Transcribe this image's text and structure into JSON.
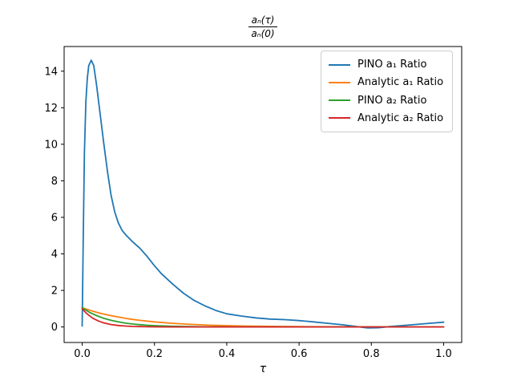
{
  "figure": {
    "background": "#ffffff"
  },
  "chart_data": {
    "type": "line",
    "title": "aₙ(τ) / aₙ(0)",
    "title_numerator": "aₙ(τ)",
    "title_denominator": "aₙ(0)",
    "xlabel": "τ",
    "ylabel": "",
    "grid": false,
    "xlim": [
      -0.05,
      1.05
    ],
    "ylim": [
      -0.85,
      15.35
    ],
    "xticks": {
      "values": [
        0.0,
        0.2,
        0.4,
        0.6,
        0.8,
        1.0
      ],
      "labels": [
        "0.0",
        "0.2",
        "0.4",
        "0.6",
        "0.8",
        "1.0"
      ]
    },
    "yticks": {
      "values": [
        0,
        2,
        4,
        6,
        8,
        10,
        12,
        14
      ],
      "labels": [
        "0",
        "2",
        "4",
        "6",
        "8",
        "10",
        "12",
        "14"
      ]
    },
    "legend_position": "upper right",
    "legend_border_color": "#cccccc",
    "series": [
      {
        "name": "PINO a₁ Ratio",
        "color": "#1f77b4",
        "points": [
          [
            0,
            0.05
          ],
          [
            0.003,
            5
          ],
          [
            0.006,
            9.5
          ],
          [
            0.01,
            12.3
          ],
          [
            0.014,
            13.6
          ],
          [
            0.018,
            14.3
          ],
          [
            0.025,
            14.6
          ],
          [
            0.032,
            14.3
          ],
          [
            0.04,
            13.2
          ],
          [
            0.05,
            11.6
          ],
          [
            0.06,
            10.0
          ],
          [
            0.07,
            8.5
          ],
          [
            0.08,
            7.2
          ],
          [
            0.09,
            6.3
          ],
          [
            0.1,
            5.7
          ],
          [
            0.11,
            5.3
          ],
          [
            0.12,
            5.05
          ],
          [
            0.14,
            4.65
          ],
          [
            0.16,
            4.3
          ],
          [
            0.18,
            3.85
          ],
          [
            0.2,
            3.35
          ],
          [
            0.22,
            2.9
          ],
          [
            0.25,
            2.35
          ],
          [
            0.28,
            1.85
          ],
          [
            0.31,
            1.45
          ],
          [
            0.34,
            1.15
          ],
          [
            0.37,
            0.9
          ],
          [
            0.4,
            0.72
          ],
          [
            0.44,
            0.6
          ],
          [
            0.48,
            0.5
          ],
          [
            0.52,
            0.43
          ],
          [
            0.56,
            0.4
          ],
          [
            0.6,
            0.35
          ],
          [
            0.64,
            0.28
          ],
          [
            0.68,
            0.2
          ],
          [
            0.72,
            0.12
          ],
          [
            0.76,
            0.02
          ],
          [
            0.79,
            -0.05
          ],
          [
            0.82,
            -0.04
          ],
          [
            0.85,
            0.02
          ],
          [
            0.9,
            0.1
          ],
          [
            0.95,
            0.18
          ],
          [
            1.0,
            0.26
          ]
        ]
      },
      {
        "name": "Analytic a₁ Ratio",
        "color": "#ff7f0e",
        "points": [
          [
            0,
            1.05
          ],
          [
            0.025,
            0.89
          ],
          [
            0.05,
            0.75
          ],
          [
            0.075,
            0.64
          ],
          [
            0.1,
            0.54
          ],
          [
            0.125,
            0.455
          ],
          [
            0.15,
            0.385
          ],
          [
            0.175,
            0.33
          ],
          [
            0.2,
            0.28
          ],
          [
            0.25,
            0.2
          ],
          [
            0.3,
            0.14
          ],
          [
            0.35,
            0.1
          ],
          [
            0.4,
            0.073
          ],
          [
            0.45,
            0.052
          ],
          [
            0.5,
            0.037
          ],
          [
            0.55,
            0.027
          ],
          [
            0.6,
            0.019
          ],
          [
            0.7,
            0.01
          ],
          [
            0.8,
            0.005
          ],
          [
            0.9,
            0.003
          ],
          [
            1.0,
            0.002
          ]
        ]
      },
      {
        "name": "PINO a₂ Ratio",
        "color": "#2ca02c",
        "points": [
          [
            0,
            1.05
          ],
          [
            0.02,
            0.8
          ],
          [
            0.04,
            0.62
          ],
          [
            0.06,
            0.47
          ],
          [
            0.08,
            0.36
          ],
          [
            0.1,
            0.28
          ],
          [
            0.12,
            0.21
          ],
          [
            0.14,
            0.16
          ],
          [
            0.16,
            0.125
          ],
          [
            0.18,
            0.095
          ],
          [
            0.2,
            0.073
          ],
          [
            0.25,
            0.037
          ],
          [
            0.3,
            0.019
          ],
          [
            0.35,
            0.01
          ],
          [
            0.4,
            0.005
          ],
          [
            0.5,
            0.001
          ],
          [
            0.6,
            0
          ],
          [
            0.7,
            0
          ],
          [
            0.8,
            0
          ],
          [
            0.9,
            0
          ],
          [
            1.0,
            0
          ]
        ]
      },
      {
        "name": "Analytic a₂ Ratio",
        "color": "#d62728",
        "points": [
          [
            0,
            1.0
          ],
          [
            0.01,
            0.78
          ],
          [
            0.02,
            0.61
          ],
          [
            0.03,
            0.47
          ],
          [
            0.045,
            0.325
          ],
          [
            0.06,
            0.22
          ],
          [
            0.08,
            0.135
          ],
          [
            0.1,
            0.082
          ],
          [
            0.12,
            0.05
          ],
          [
            0.14,
            0.03
          ],
          [
            0.16,
            0.018
          ],
          [
            0.18,
            0.011
          ],
          [
            0.2,
            0.007
          ],
          [
            0.25,
            0.002
          ],
          [
            0.3,
            0.001
          ],
          [
            0.4,
            0
          ],
          [
            0.5,
            0
          ],
          [
            0.6,
            0
          ],
          [
            0.7,
            0
          ],
          [
            0.8,
            0
          ],
          [
            0.9,
            0
          ],
          [
            1.0,
            0
          ]
        ]
      }
    ]
  }
}
